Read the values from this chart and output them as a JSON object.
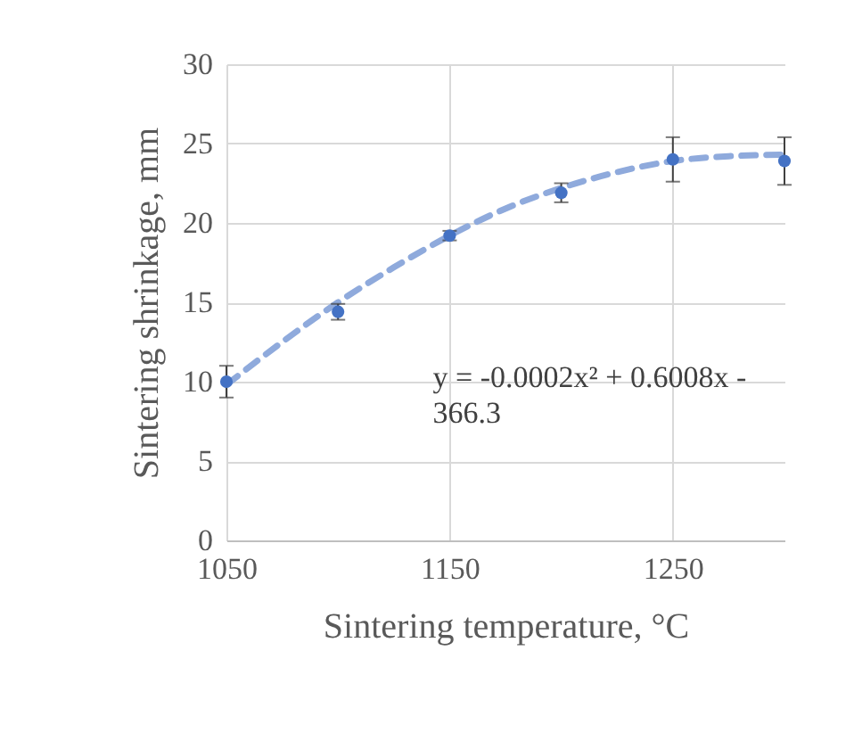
{
  "chart_data": {
    "type": "scatter",
    "xlabel": "Sintering temperature, °C",
    "ylabel": "Sintering shrinkage, mm",
    "xlim": [
      1050,
      1300
    ],
    "xticks": [
      1050,
      1150,
      1250
    ],
    "ylim": [
      0,
      30
    ],
    "yticks": [
      0,
      5,
      10,
      15,
      20,
      25,
      30
    ],
    "grid": true,
    "annotations": [
      "y = -0.0002x² + 0.6008x - 366.3"
    ],
    "series": [
      {
        "color": "#4472c4",
        "marker": "circle",
        "x": [
          1050,
          1100,
          1150,
          1200,
          1250,
          1300
        ],
        "values": [
          10.0,
          14.4,
          19.2,
          21.9,
          24.0,
          23.9
        ],
        "errors": [
          1.0,
          0.5,
          0.3,
          0.6,
          1.4,
          1.5
        ]
      },
      {
        "type": "line",
        "color": "#8faadc",
        "line_style": "dashed",
        "x": [
          1050,
          1075,
          1100,
          1125,
          1150,
          1175,
          1200,
          1225,
          1250,
          1275,
          1300
        ],
        "values": [
          9.8,
          12.5,
          15.0,
          17.2,
          19.2,
          20.9,
          22.2,
          23.2,
          23.9,
          24.2,
          24.3
        ]
      }
    ]
  }
}
